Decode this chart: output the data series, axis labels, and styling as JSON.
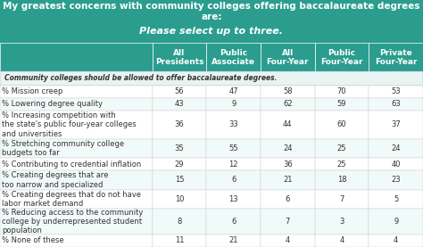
{
  "title_line1": "My greatest concerns with community colleges offering baccalaureate degrees are:",
  "title_line2": "Please select up to three.",
  "header_bg": "#2a9d8f",
  "subheader_bg": "#e8f4f3",
  "row_alt_bg": "#ffffff",
  "row_bg2": "#f5fafa",
  "col_headers": [
    "All\nPresidents",
    "Public\nAssociate",
    "All\nFour-Year",
    "Public\nFour-Year",
    "Private\nFour-Year"
  ],
  "section_header": "Community colleges should be allowed to offer baccalaureate degrees.",
  "row_labels": [
    "% Mission creep",
    "% Lowering degree quality",
    "% Increasing competition with\nthe state's public four-year colleges\nand universities",
    "% Stretching community college\nbudgets too far",
    "% Contributing to credential inflation",
    "% Creating degrees that are\ntoo narrow and specialized",
    "% Creating degrees that do not have\nlabor market demand",
    "% Reducing access to the community\ncollege by underrepresented student\npopulation",
    "% None of these"
  ],
  "data": [
    [
      56,
      47,
      58,
      70,
      53
    ],
    [
      43,
      9,
      62,
      59,
      63
    ],
    [
      36,
      33,
      44,
      60,
      37
    ],
    [
      35,
      55,
      24,
      25,
      24
    ],
    [
      29,
      12,
      36,
      25,
      40
    ],
    [
      15,
      6,
      21,
      18,
      23
    ],
    [
      10,
      13,
      6,
      7,
      5
    ],
    [
      8,
      6,
      7,
      3,
      9
    ],
    [
      11,
      21,
      4,
      4,
      4
    ]
  ],
  "header_text_color": "#ffffff",
  "body_text_color": "#333333",
  "section_text_color": "#333333",
  "border_color": "#cccccc",
  "title_fontsize": 7.5,
  "subtitle_fontsize": 8,
  "header_fontsize": 6.5,
  "body_fontsize": 6,
  "col_header_color": "#2a9d8f"
}
